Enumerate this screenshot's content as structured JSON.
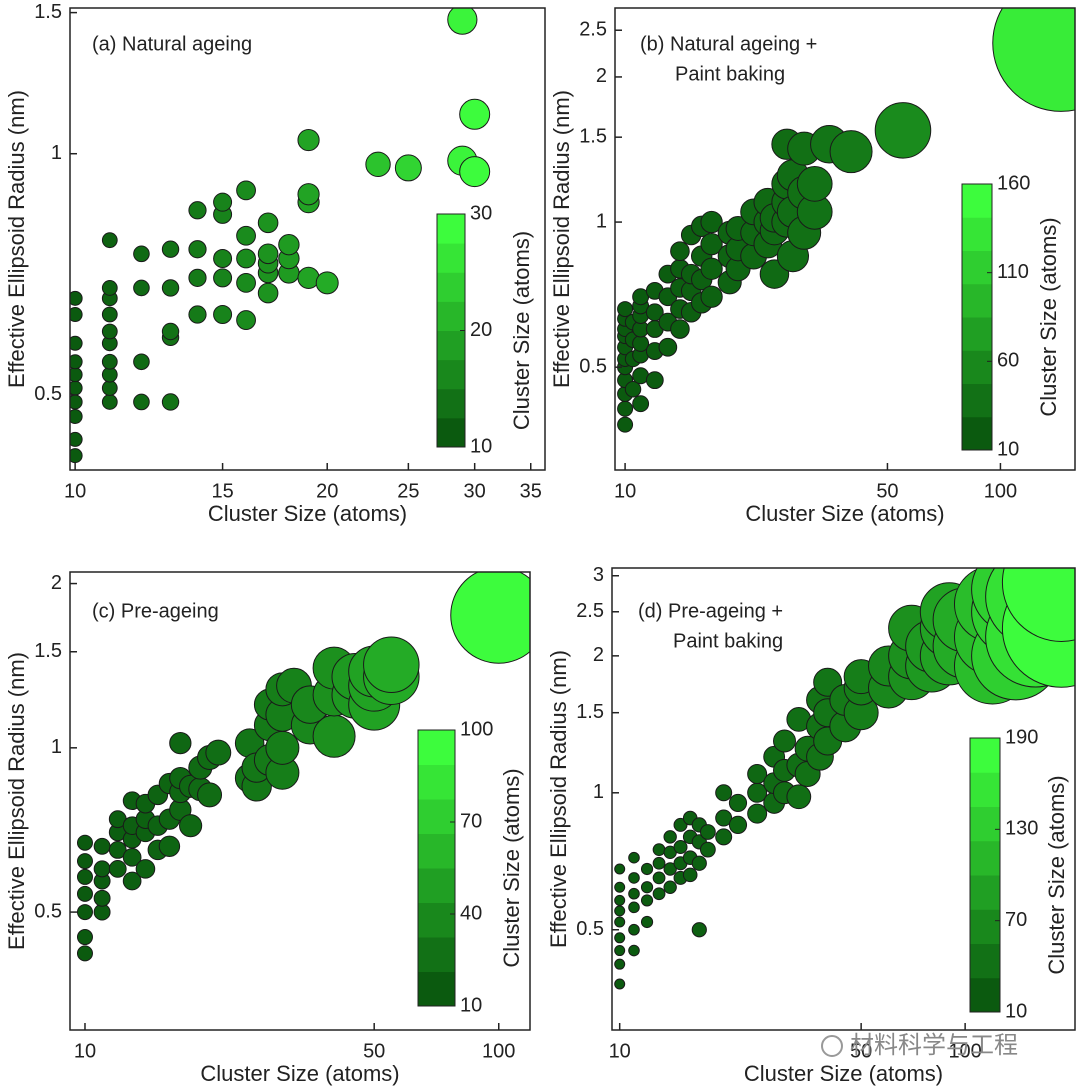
{
  "chart_data": [
    {
      "type": "scatter",
      "title_lines": [
        "(a) Natural ageing"
      ],
      "x_label": "Cluster Size (atoms)",
      "y_label": "Effective Ellipsoid Radius (nm)",
      "xscale": "log",
      "yscale": "log",
      "xlim": [
        9.86,
        36.4
      ],
      "ylim": [
        0.403,
        1.52
      ],
      "xticks": [
        10,
        15,
        20,
        25,
        30,
        35
      ],
      "yticks": [
        0.5,
        1,
        1.5
      ],
      "x": [
        10,
        10,
        10,
        10,
        10,
        10,
        10,
        10,
        10,
        10,
        11,
        11,
        11,
        11,
        11,
        11,
        11,
        11,
        11,
        11,
        12,
        12,
        12,
        12,
        13,
        13,
        13,
        13,
        13,
        14,
        14,
        14,
        14,
        15,
        15,
        15,
        15,
        15,
        16,
        16,
        16,
        16,
        16,
        17,
        17,
        17,
        17,
        17,
        18,
        18,
        18,
        19,
        19,
        19,
        19,
        20,
        23,
        25,
        29,
        29,
        30,
        30
      ],
      "y": [
        0.42,
        0.44,
        0.47,
        0.49,
        0.51,
        0.53,
        0.55,
        0.58,
        0.63,
        0.66,
        0.49,
        0.51,
        0.53,
        0.55,
        0.58,
        0.6,
        0.63,
        0.66,
        0.68,
        0.78,
        0.49,
        0.55,
        0.68,
        0.75,
        0.49,
        0.59,
        0.6,
        0.68,
        0.76,
        0.63,
        0.7,
        0.76,
        0.85,
        0.63,
        0.7,
        0.74,
        0.84,
        0.87,
        0.62,
        0.69,
        0.74,
        0.79,
        0.9,
        0.67,
        0.71,
        0.73,
        0.75,
        0.82,
        0.71,
        0.74,
        0.77,
        0.7,
        0.87,
        0.89,
        1.04,
        0.69,
        0.97,
        0.96,
        1.47,
        0.98,
        1.12,
        0.95
      ],
      "colorbar": {
        "label": "Cluster Size (atoms)",
        "lim": [
          10,
          30
        ],
        "ticks": [
          10,
          20,
          30
        ],
        "colors": [
          "#0b5a0f",
          "#3dfc3d"
        ]
      }
    },
    {
      "type": "scatter",
      "title_lines": [
        "(b) Natural ageing +",
        "Paint baking"
      ],
      "x_label": "Cluster Size (atoms)",
      "y_label": "Effective Ellipsoid Radius (nm)",
      "xscale": "log",
      "yscale": "log",
      "xlim": [
        9.4,
        158
      ],
      "ylim": [
        0.306,
        2.78
      ],
      "xticks": [
        10,
        50,
        100
      ],
      "yticks": [
        0.5,
        1,
        1.5,
        2,
        2.5
      ],
      "x": [
        10,
        10,
        10,
        10,
        10,
        10,
        10,
        10,
        10,
        10,
        10,
        10.5,
        10.5,
        10.5,
        10.5,
        11,
        11,
        11,
        11,
        11,
        11,
        11,
        11,
        12,
        12,
        12,
        12,
        12,
        13,
        13,
        13,
        13,
        14,
        14,
        14,
        14,
        14,
        15,
        15,
        15,
        15,
        16,
        16,
        16,
        16,
        17,
        17,
        17,
        17,
        19,
        19,
        19,
        20,
        20,
        20,
        22,
        22,
        22,
        24,
        24,
        24,
        25,
        25,
        25,
        27,
        27,
        27,
        27,
        28,
        28,
        28,
        30,
        30,
        30,
        32,
        32,
        35,
        40,
        55,
        145
      ],
      "y": [
        0.38,
        0.41,
        0.44,
        0.47,
        0.5,
        0.52,
        0.55,
        0.58,
        0.6,
        0.63,
        0.66,
        0.45,
        0.52,
        0.57,
        0.62,
        0.42,
        0.48,
        0.53,
        0.56,
        0.6,
        0.64,
        0.67,
        0.7,
        0.47,
        0.54,
        0.6,
        0.65,
        0.72,
        0.55,
        0.62,
        0.7,
        0.78,
        0.6,
        0.66,
        0.73,
        0.8,
        0.87,
        0.65,
        0.72,
        0.78,
        0.94,
        0.68,
        0.76,
        0.85,
        0.98,
        0.7,
        0.8,
        0.9,
        1.0,
        0.75,
        0.85,
        0.95,
        0.8,
        0.88,
        0.97,
        0.85,
        0.95,
        1.05,
        0.9,
        1.0,
        1.1,
        0.78,
        0.96,
        1.02,
        1.0,
        1.1,
        1.2,
        1.45,
        0.85,
        1.05,
        1.25,
        0.95,
        1.15,
        1.42,
        1.05,
        1.2,
        1.45,
        1.4,
        1.55,
        2.35
      ],
      "colorbar": {
        "label": "Cluster Size (atoms)",
        "lim": [
          10,
          160
        ],
        "ticks": [
          10,
          60,
          110,
          160
        ],
        "colors": [
          "#0b5a0f",
          "#3dfc3d"
        ]
      }
    },
    {
      "type": "scatter",
      "title_lines": [
        "(c) Pre-ageing"
      ],
      "x_label": "Cluster Size (atoms)",
      "y_label": "Effective Ellipsoid Radius (nm)",
      "xscale": "log",
      "yscale": "log",
      "xlim": [
        9.2,
        119
      ],
      "ylim": [
        0.304,
        2.1
      ],
      "xticks": [
        10,
        50,
        100
      ],
      "yticks": [
        0.5,
        1,
        1.5,
        2
      ],
      "x": [
        10,
        10,
        10,
        10,
        10,
        10,
        10,
        11,
        11,
        11,
        11,
        11,
        12,
        12,
        12,
        12,
        13,
        13,
        13,
        13,
        13,
        14,
        14,
        14,
        14,
        15,
        15,
        15,
        16,
        16,
        16,
        17,
        17,
        17,
        17,
        18,
        18,
        19,
        19,
        20,
        20,
        21,
        25,
        25,
        26,
        26,
        28,
        28,
        28,
        30,
        30,
        30,
        30,
        32,
        35,
        35,
        40,
        40,
        40,
        45,
        45,
        50,
        50,
        50,
        55,
        55,
        100
      ],
      "y": [
        0.42,
        0.45,
        0.5,
        0.54,
        0.58,
        0.62,
        0.67,
        0.5,
        0.53,
        0.57,
        0.6,
        0.66,
        0.6,
        0.65,
        0.7,
        0.74,
        0.57,
        0.63,
        0.68,
        0.72,
        0.8,
        0.6,
        0.7,
        0.74,
        0.79,
        0.65,
        0.72,
        0.82,
        0.66,
        0.74,
        0.86,
        0.77,
        0.83,
        0.88,
        1.02,
        0.72,
        0.85,
        0.84,
        0.92,
        0.82,
        0.96,
        0.98,
        1.02,
        0.88,
        0.85,
        0.92,
        0.95,
        1.1,
        1.2,
        0.9,
        1.0,
        1.15,
        1.28,
        1.3,
        1.1,
        1.2,
        1.05,
        1.25,
        1.4,
        1.25,
        1.35,
        1.2,
        1.3,
        1.38,
        1.35,
        1.42,
        1.75
      ],
      "colorbar": {
        "label": "Cluster Size (atoms)",
        "lim": [
          10,
          100
        ],
        "ticks": [
          10,
          40,
          70,
          100
        ],
        "colors": [
          "#0b5a0f",
          "#3dfc3d"
        ]
      }
    },
    {
      "type": "scatter",
      "title_lines": [
        "(d) Pre-ageing +",
        "Paint baking"
      ],
      "x_label": "Cluster Size (atoms)",
      "y_label": "Effective Ellipsoid Radius (nm)",
      "xscale": "log",
      "yscale": "log",
      "xlim": [
        9.5,
        208
      ],
      "ylim": [
        0.301,
        3.12
      ],
      "xticks": [
        10,
        50,
        100
      ],
      "yticks": [
        0.5,
        1,
        1.5,
        2,
        2.5,
        3
      ],
      "x": [
        10,
        10,
        10,
        10,
        10,
        10,
        10,
        10,
        10,
        11,
        11,
        11,
        11,
        11,
        11,
        12,
        12,
        12,
        12,
        13,
        13,
        13,
        13,
        14,
        14,
        14,
        14,
        15,
        15,
        15,
        15,
        16,
        16,
        16,
        16,
        17,
        17,
        17,
        17,
        18,
        18,
        20,
        20,
        20,
        22,
        22,
        25,
        25,
        25,
        28,
        28,
        28,
        30,
        30,
        30,
        33,
        33,
        33,
        35,
        35,
        38,
        38,
        38,
        40,
        40,
        40,
        45,
        45,
        50,
        50,
        50,
        60,
        60,
        70,
        70,
        70,
        80,
        80,
        90,
        90,
        90,
        100,
        100,
        120,
        120,
        120,
        140,
        140,
        140,
        160,
        160,
        190,
        190
      ],
      "y": [
        0.38,
        0.42,
        0.45,
        0.48,
        0.52,
        0.55,
        0.58,
        0.62,
        0.68,
        0.45,
        0.5,
        0.56,
        0.6,
        0.65,
        0.72,
        0.52,
        0.58,
        0.62,
        0.68,
        0.6,
        0.65,
        0.7,
        0.75,
        0.62,
        0.68,
        0.74,
        0.8,
        0.65,
        0.7,
        0.76,
        0.85,
        0.66,
        0.72,
        0.8,
        0.88,
        0.5,
        0.7,
        0.78,
        0.85,
        0.75,
        0.82,
        0.8,
        0.88,
        1.0,
        0.85,
        0.95,
        0.9,
        1.0,
        1.1,
        0.95,
        1.05,
        1.2,
        1.0,
        1.12,
        1.3,
        0.98,
        1.15,
        1.45,
        1.1,
        1.25,
        1.2,
        1.4,
        1.6,
        1.3,
        1.5,
        1.75,
        1.4,
        1.6,
        1.5,
        1.7,
        1.8,
        1.7,
        1.9,
        1.8,
        2.0,
        2.3,
        1.9,
        2.1,
        2.0,
        2.3,
        2.5,
        2.1,
        2.4,
        1.9,
        2.2,
        2.6,
        2.0,
        2.5,
        2.8,
        2.2,
        2.7,
        2.3,
        2.9
      ],
      "colorbar": {
        "label": "Cluster Size (atoms)",
        "lim": [
          10,
          190
        ],
        "ticks": [
          10,
          70,
          130,
          190
        ],
        "colors": [
          "#0b5a0f",
          "#3dfc3d"
        ]
      }
    }
  ],
  "watermark": "材料科学与工程"
}
